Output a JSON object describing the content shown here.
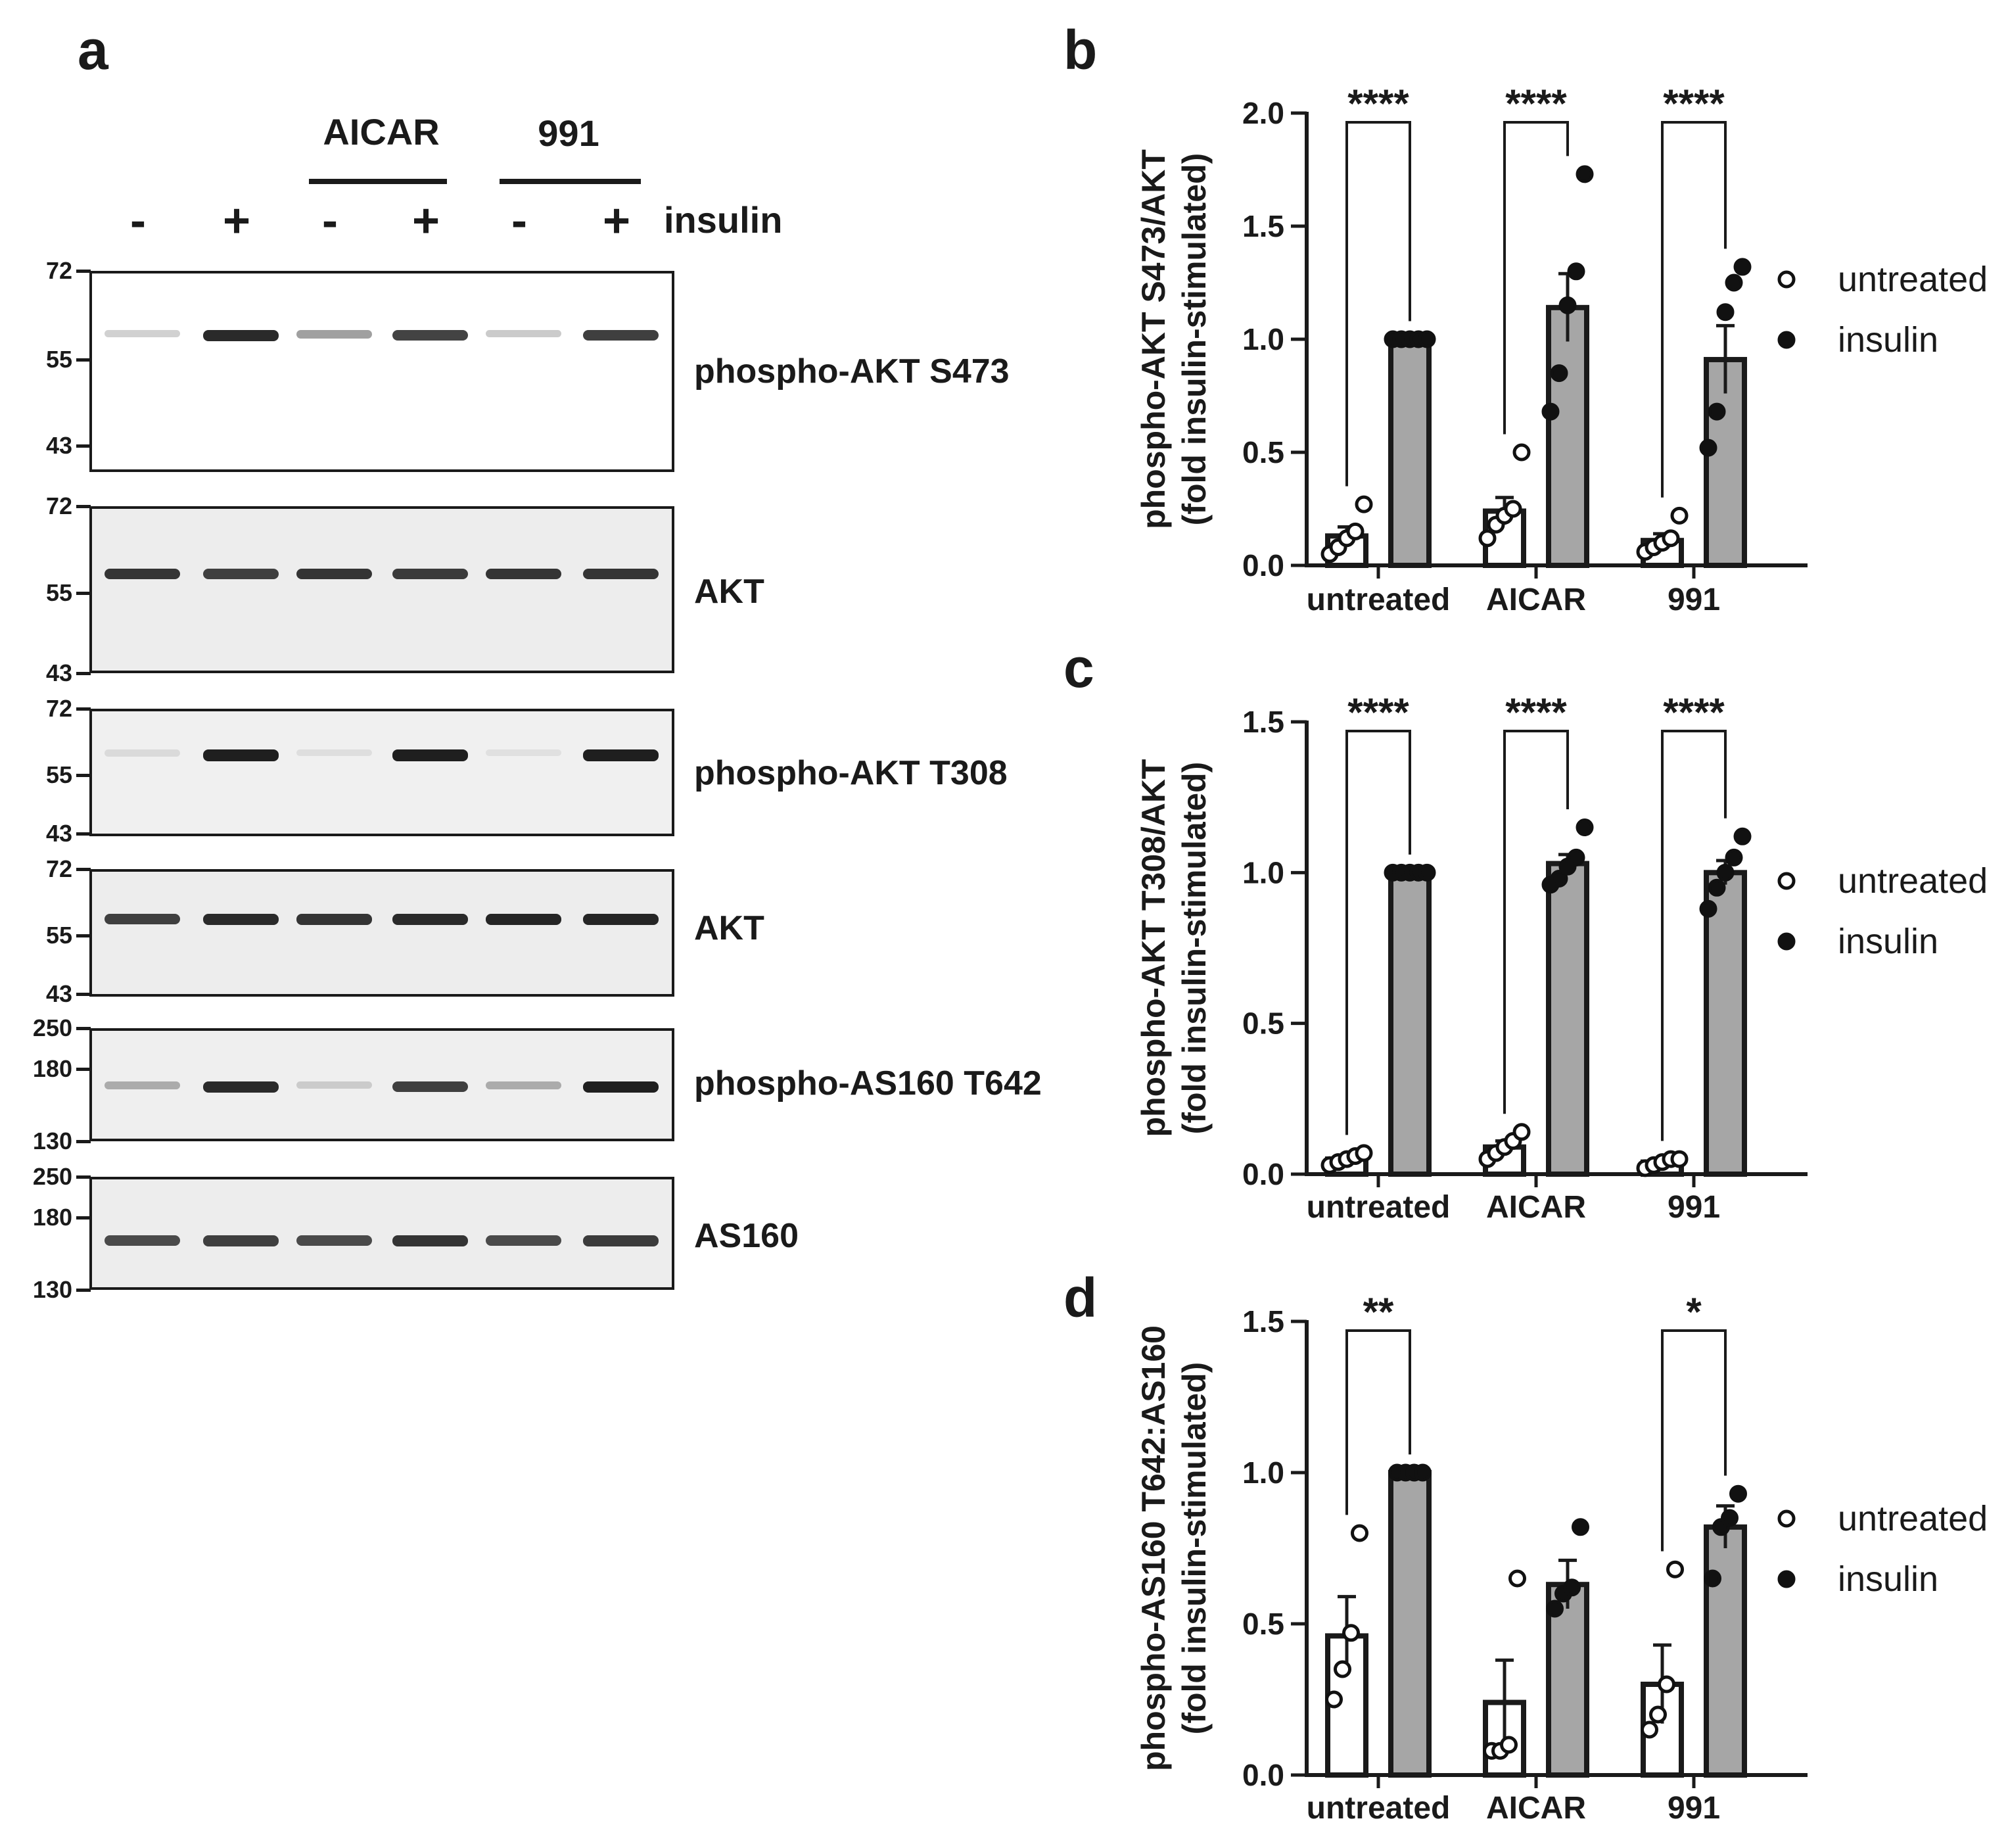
{
  "panels": {
    "a": "a",
    "b": "b",
    "c": "c",
    "d": "d"
  },
  "treatments": {
    "aicar": "AICAR",
    "c991": "991"
  },
  "lanes": [
    "-",
    "+",
    "-",
    "+",
    "-",
    "+"
  ],
  "insulin_label": "insulin",
  "blots": [
    {
      "label": "phospho-AKT S473",
      "markers": [
        "72",
        "55",
        "43"
      ],
      "bands": [
        0.12,
        0.9,
        0.35,
        0.78,
        0.15,
        0.8
      ]
    },
    {
      "label": "AKT",
      "markers": [
        "72",
        "55",
        "43"
      ],
      "bands": [
        0.85,
        0.8,
        0.85,
        0.82,
        0.85,
        0.85
      ]
    },
    {
      "label": "phospho-AKT T308",
      "markers": [
        "72",
        "55",
        "43"
      ],
      "bands": [
        0.08,
        0.95,
        0.06,
        0.95,
        0.05,
        0.95
      ]
    },
    {
      "label": "AKT",
      "markers": [
        "72",
        "55",
        "43"
      ],
      "bands": [
        0.8,
        0.9,
        0.85,
        0.9,
        0.92,
        0.92
      ]
    },
    {
      "label": "phospho-AS160 T642",
      "markers": [
        "250",
        "180",
        "130"
      ],
      "bands": [
        0.3,
        0.9,
        0.15,
        0.8,
        0.3,
        0.95
      ]
    },
    {
      "label": "AS160",
      "markers": [
        "250",
        "180",
        "130"
      ],
      "bands": [
        0.75,
        0.8,
        0.75,
        0.85,
        0.75,
        0.82
      ]
    }
  ],
  "chart_data": [
    {
      "panel": "b",
      "type": "bar",
      "ylabel": [
        "phospho-AKT S473/AKT",
        "(fold insulin-stimulated)"
      ],
      "ylim": [
        0,
        2.0
      ],
      "yticks": [
        "0.0",
        "0.5",
        "1.0",
        "1.5",
        "2.0"
      ],
      "categories": [
        "untreated",
        "AICAR",
        "991"
      ],
      "legend": {
        "position": "right",
        "items": [
          "untreated",
          "insulin"
        ]
      },
      "series": [
        {
          "name": "untreated",
          "values": [
            0.13,
            0.24,
            0.11
          ],
          "sem": [
            0.04,
            0.06,
            0.03
          ],
          "points": [
            [
              0.05,
              0.08,
              0.12,
              0.15,
              0.27
            ],
            [
              0.12,
              0.18,
              0.22,
              0.25,
              0.5
            ],
            [
              0.06,
              0.08,
              0.1,
              0.12,
              0.22
            ]
          ]
        },
        {
          "name": "insulin",
          "values": [
            1.0,
            1.14,
            0.91
          ],
          "sem": [
            0.0,
            0.15,
            0.15
          ],
          "points": [
            [
              1.0,
              1.0,
              1.0,
              1.0,
              1.0
            ],
            [
              0.68,
              0.85,
              1.15,
              1.3,
              1.73
            ],
            [
              0.52,
              0.68,
              1.12,
              1.25,
              1.32
            ]
          ]
        }
      ],
      "significance": [
        "****",
        "****",
        "****"
      ]
    },
    {
      "panel": "c",
      "type": "bar",
      "ylabel": [
        "phospho-AKT T308/AKT",
        "(fold insulin-stimulated)"
      ],
      "ylim": [
        0,
        1.5
      ],
      "yticks": [
        "0.0",
        "0.5",
        "1.0",
        "1.5"
      ],
      "categories": [
        "untreated",
        "AICAR",
        "991"
      ],
      "legend": {
        "position": "right",
        "items": [
          "untreated",
          "insulin"
        ]
      },
      "series": [
        {
          "name": "untreated",
          "values": [
            0.05,
            0.09,
            0.04
          ],
          "sem": [
            0.01,
            0.02,
            0.01
          ],
          "points": [
            [
              0.03,
              0.04,
              0.05,
              0.06,
              0.07
            ],
            [
              0.05,
              0.07,
              0.09,
              0.11,
              0.14
            ],
            [
              0.02,
              0.03,
              0.04,
              0.05,
              0.05
            ]
          ]
        },
        {
          "name": "insulin",
          "values": [
            1.0,
            1.03,
            1.0
          ],
          "sem": [
            0.0,
            0.03,
            0.04
          ],
          "points": [
            [
              1.0,
              1.0,
              1.0,
              1.0,
              1.0
            ],
            [
              0.96,
              0.98,
              1.02,
              1.05,
              1.15
            ],
            [
              0.88,
              0.95,
              1.0,
              1.05,
              1.12
            ]
          ]
        }
      ],
      "significance": [
        "****",
        "****",
        "****"
      ]
    },
    {
      "panel": "d",
      "type": "bar",
      "ylabel": [
        "phospho-AS160 T642:AS160",
        "(fold insulin-stimulated)"
      ],
      "ylim": [
        0,
        1.5
      ],
      "yticks": [
        "0.0",
        "0.5",
        "1.0",
        "1.5"
      ],
      "categories": [
        "untreated",
        "AICAR",
        "991"
      ],
      "legend": {
        "position": "right",
        "items": [
          "untreated",
          "insulin"
        ]
      },
      "series": [
        {
          "name": "untreated",
          "values": [
            0.46,
            0.24,
            0.3
          ],
          "sem": [
            0.13,
            0.14,
            0.13
          ],
          "points": [
            [
              0.25,
              0.35,
              0.47,
              0.8
            ],
            [
              0.08,
              0.08,
              0.1,
              0.65
            ],
            [
              0.15,
              0.2,
              0.3,
              0.68
            ]
          ]
        },
        {
          "name": "insulin",
          "values": [
            1.0,
            0.63,
            0.82
          ],
          "sem": [
            0.0,
            0.08,
            0.07
          ],
          "points": [
            [
              1.0,
              1.0,
              1.0,
              1.0
            ],
            [
              0.55,
              0.6,
              0.62,
              0.82
            ],
            [
              0.65,
              0.82,
              0.85,
              0.93
            ]
          ]
        }
      ],
      "significance": [
        "**",
        "",
        "*"
      ]
    }
  ]
}
